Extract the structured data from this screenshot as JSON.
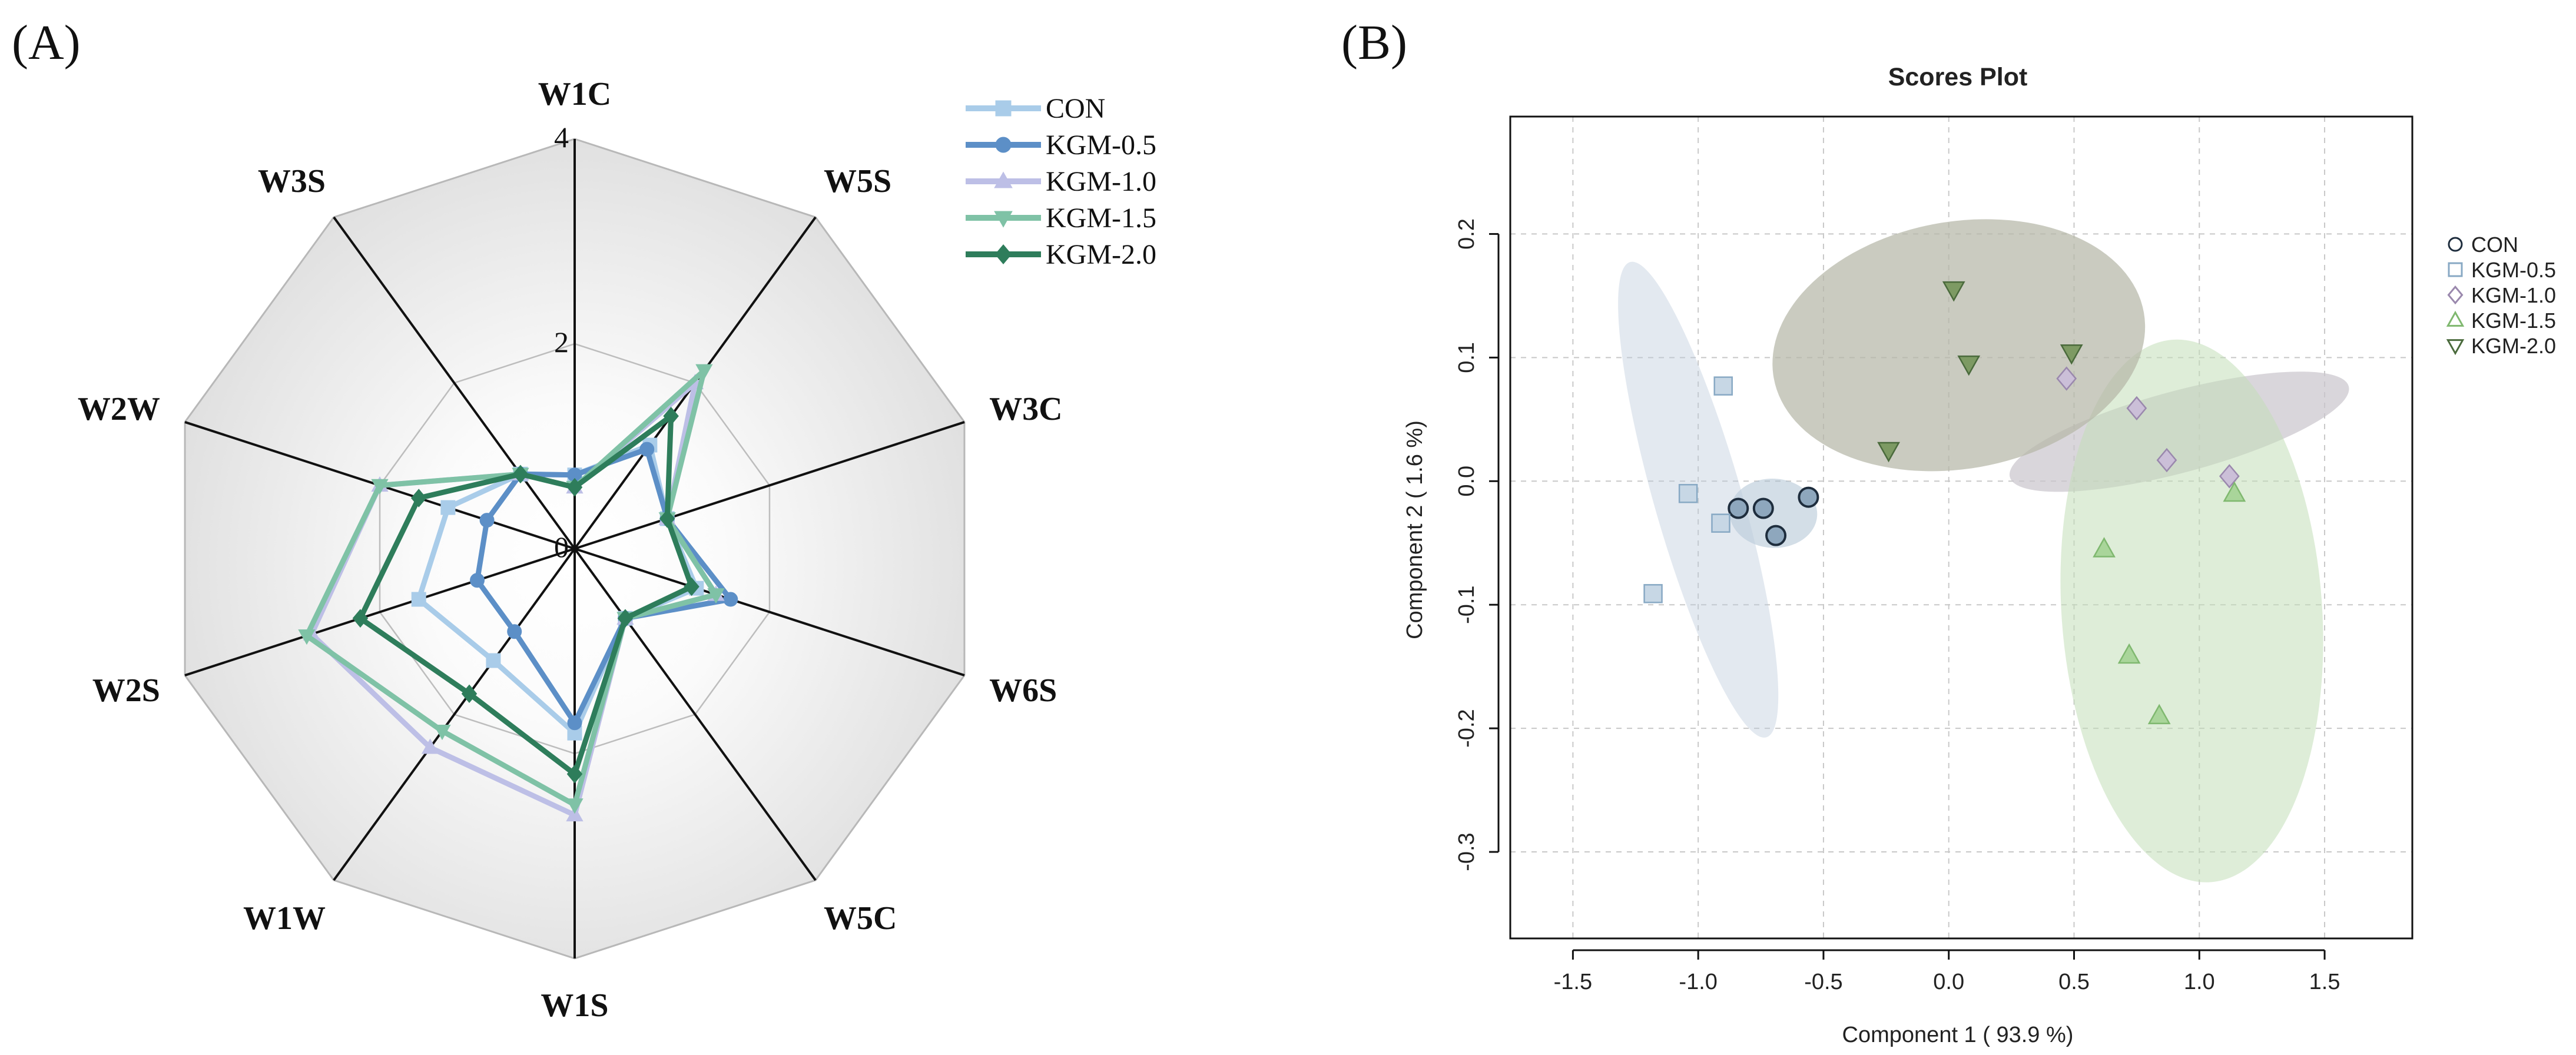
{
  "panels": {
    "a_label": "(A)",
    "b_label": "(B)"
  },
  "chart_data": [
    {
      "type": "radar",
      "panel": "(A)",
      "axes": [
        "W1C",
        "W5S",
        "W3C",
        "W6S",
        "W5C",
        "W1S",
        "W1W",
        "W2S",
        "W2W",
        "W3S"
      ],
      "rlim": [
        0,
        4
      ],
      "r_ticks": [
        {
          "value": 0,
          "label": "0"
        },
        {
          "value": 2,
          "label": "2"
        },
        {
          "value": 4,
          "label": "4"
        }
      ],
      "series": [
        {
          "name": "CON",
          "color": "#a9cce9",
          "marker": "square",
          "values": [
            0.72,
            1.25,
            0.95,
            1.25,
            0.84,
            1.8,
            1.35,
            1.6,
            1.3,
            0.9
          ]
        },
        {
          "name": "KGM-0.5",
          "color": "#5c8fc7",
          "marker": "circle",
          "values": [
            0.72,
            1.2,
            0.95,
            1.6,
            0.84,
            1.7,
            1.0,
            1.0,
            0.9,
            0.9
          ]
        },
        {
          "name": "KGM-1.0",
          "color": "#bdbfe6",
          "marker": "triangle",
          "values": [
            0.6,
            2.0,
            0.95,
            1.45,
            0.84,
            2.6,
            2.4,
            2.7,
            2.0,
            0.9
          ]
        },
        {
          "name": "KGM-1.5",
          "color": "#7fc2a6",
          "marker": "triangle-down",
          "values": [
            0.6,
            2.15,
            0.95,
            1.45,
            0.84,
            2.5,
            2.2,
            2.75,
            2.0,
            0.9
          ]
        },
        {
          "name": "KGM-2.0",
          "color": "#2e7d5b",
          "marker": "diamond",
          "values": [
            0.6,
            1.6,
            0.95,
            1.2,
            0.84,
            2.2,
            1.75,
            2.2,
            1.6,
            0.9
          ]
        }
      ],
      "legend_position": "top-right"
    },
    {
      "type": "scatter",
      "panel": "(B)",
      "title": "Scores Plot",
      "xlabel": "Component 1 ( 93.9 %)",
      "ylabel": "Component 2 ( 1.6 %)",
      "xlim": [
        -1.75,
        1.85
      ],
      "ylim": [
        -0.37,
        0.295
      ],
      "x_ticks": [
        {
          "value": -1.5,
          "label": "-1.5"
        },
        {
          "value": -1.0,
          "label": "-1.0"
        },
        {
          "value": -0.5,
          "label": "-0.5"
        },
        {
          "value": 0.0,
          "label": "0.0"
        },
        {
          "value": 0.5,
          "label": "0.5"
        },
        {
          "value": 1.0,
          "label": "1.0"
        },
        {
          "value": 1.5,
          "label": "1.5"
        }
      ],
      "y_ticks": [
        {
          "value": 0.2,
          "label": "0.2"
        },
        {
          "value": 0.1,
          "label": "0.1"
        },
        {
          "value": 0.0,
          "label": "0.0"
        },
        {
          "value": -0.1,
          "label": "-0.1"
        },
        {
          "value": -0.2,
          "label": "-0.2"
        },
        {
          "value": -0.3,
          "label": "-0.3"
        }
      ],
      "series": [
        {
          "name": "CON",
          "marker": "circle",
          "color": "#1e2d3d",
          "fill": "#8ea7bd",
          "points": [
            [
              -0.84,
              -0.022
            ],
            [
              -0.74,
              -0.022
            ],
            [
              -0.69,
              -0.044
            ],
            [
              -0.56,
              -0.013
            ]
          ],
          "ellipse": {
            "cx": -0.7,
            "cy": -0.026,
            "rx": 0.175,
            "ry": 0.028,
            "angle": 3,
            "color": "#a7bdcf",
            "opacity": 0.5
          }
        },
        {
          "name": "KGM-0.5",
          "marker": "square",
          "color": "#88a9c4",
          "fill": "#c7d7e5",
          "points": [
            [
              -0.9,
              0.077
            ],
            [
              -1.04,
              -0.01
            ],
            [
              -0.91,
              -0.034
            ],
            [
              -1.18,
              -0.091
            ]
          ],
          "ellipse": {
            "cx": -1.0,
            "cy": -0.015,
            "rx": 0.175,
            "ry": 0.2,
            "angle": -16,
            "color": "#bccbdb",
            "opacity": 0.42
          }
        },
        {
          "name": "KGM-1.0",
          "marker": "diamond",
          "color": "#9a88ad",
          "fill": "#cbbfd8",
          "points": [
            [
              0.47,
              0.083
            ],
            [
              0.75,
              0.059
            ],
            [
              0.87,
              0.017
            ],
            [
              1.12,
              0.004
            ]
          ],
          "ellipse": {
            "cx": 0.92,
            "cy": 0.04,
            "rx": 0.7,
            "ry": 0.033,
            "angle": -15,
            "color": "#c9c5cc",
            "opacity": 0.7
          }
        },
        {
          "name": "KGM-1.5",
          "marker": "triangle",
          "color": "#7fb86f",
          "fill": "#a9d59a",
          "points": [
            [
              0.62,
              -0.055
            ],
            [
              0.72,
              -0.141
            ],
            [
              0.84,
              -0.19
            ],
            [
              1.14,
              -0.01
            ]
          ],
          "ellipse": {
            "cx": 0.97,
            "cy": -0.105,
            "rx": 0.52,
            "ry": 0.22,
            "angle": -4,
            "color": "#c3dfb8",
            "opacity": 0.55
          }
        },
        {
          "name": "KGM-2.0",
          "marker": "triangle-down",
          "color": "#4a6a3c",
          "fill": "#7d9a63",
          "points": [
            [
              0.02,
              0.155
            ],
            [
              0.08,
              0.095
            ],
            [
              -0.24,
              0.025
            ],
            [
              0.49,
              0.104
            ]
          ],
          "ellipse": {
            "cx": 0.04,
            "cy": 0.11,
            "rx": 0.75,
            "ry": 0.1,
            "angle": -10,
            "color": "#b6b7a8",
            "opacity": 0.72
          }
        }
      ],
      "legend_position": "right"
    }
  ]
}
